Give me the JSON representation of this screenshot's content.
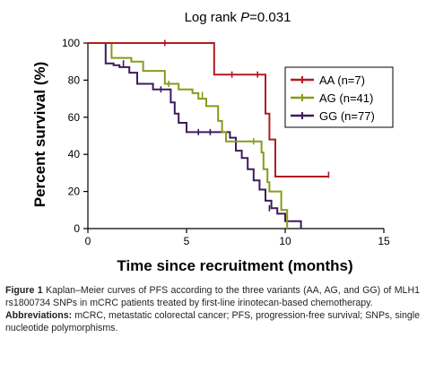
{
  "chart_data": {
    "type": "line",
    "step": true,
    "title": "Log rank P=0.031",
    "title_parts": {
      "prefix": "Log rank ",
      "italic": "P",
      "suffix": "=0.031"
    },
    "xlabel": "Time since recruitment (months)",
    "ylabel": "Percent survival (%)",
    "xlim": [
      0,
      15
    ],
    "ylim": [
      0,
      100
    ],
    "xticks": [
      0,
      5,
      10,
      15
    ],
    "yticks": [
      0,
      20,
      40,
      60,
      80,
      100
    ],
    "grid": false,
    "legend_position": "right",
    "series": [
      {
        "name": "AA (n=7)",
        "color": "#b01c22",
        "steps": [
          [
            0,
            100
          ],
          [
            6.4,
            100
          ],
          [
            6.4,
            83
          ],
          [
            9.0,
            83
          ],
          [
            9.0,
            62
          ],
          [
            9.2,
            62
          ],
          [
            9.2,
            48
          ],
          [
            9.5,
            48
          ],
          [
            9.5,
            28
          ],
          [
            12.2,
            28
          ]
        ],
        "censored": [
          [
            3.9,
            100
          ],
          [
            7.3,
            83
          ],
          [
            8.6,
            83
          ],
          [
            12.2,
            29
          ]
        ]
      },
      {
        "name": "AG (n=41)",
        "color": "#8a9a1a",
        "steps": [
          [
            0,
            100
          ],
          [
            1.2,
            100
          ],
          [
            1.2,
            92
          ],
          [
            2.2,
            92
          ],
          [
            2.2,
            90
          ],
          [
            2.8,
            90
          ],
          [
            2.8,
            85
          ],
          [
            3.9,
            85
          ],
          [
            3.9,
            78
          ],
          [
            4.6,
            78
          ],
          [
            4.6,
            75
          ],
          [
            5.3,
            75
          ],
          [
            5.3,
            73
          ],
          [
            5.6,
            73
          ],
          [
            5.6,
            70
          ],
          [
            6.0,
            70
          ],
          [
            6.0,
            66
          ],
          [
            6.6,
            66
          ],
          [
            6.6,
            58
          ],
          [
            6.8,
            58
          ],
          [
            6.8,
            52
          ],
          [
            7.0,
            52
          ],
          [
            7.0,
            47
          ],
          [
            8.8,
            47
          ],
          [
            8.8,
            41
          ],
          [
            8.9,
            41
          ],
          [
            8.9,
            32
          ],
          [
            9.1,
            32
          ],
          [
            9.1,
            25
          ],
          [
            9.2,
            25
          ],
          [
            9.2,
            20
          ],
          [
            9.8,
            20
          ],
          [
            9.8,
            10
          ],
          [
            10.1,
            10
          ],
          [
            10.1,
            0
          ]
        ],
        "censored": [
          [
            4.1,
            78
          ],
          [
            5.8,
            72
          ],
          [
            8.4,
            47
          ]
        ]
      },
      {
        "name": "GG (n=77)",
        "color": "#3e1a5e",
        "steps": [
          [
            0,
            100
          ],
          [
            0.9,
            100
          ],
          [
            0.9,
            89
          ],
          [
            1.3,
            89
          ],
          [
            1.3,
            88
          ],
          [
            1.6,
            88
          ],
          [
            1.6,
            87
          ],
          [
            2.1,
            87
          ],
          [
            2.1,
            84
          ],
          [
            2.5,
            84
          ],
          [
            2.5,
            78
          ],
          [
            3.3,
            78
          ],
          [
            3.3,
            75
          ],
          [
            4.2,
            75
          ],
          [
            4.2,
            68
          ],
          [
            4.4,
            68
          ],
          [
            4.4,
            62
          ],
          [
            4.6,
            62
          ],
          [
            4.6,
            57
          ],
          [
            5.0,
            57
          ],
          [
            5.0,
            52
          ],
          [
            7.2,
            52
          ],
          [
            7.2,
            49
          ],
          [
            7.5,
            49
          ],
          [
            7.5,
            42
          ],
          [
            7.8,
            42
          ],
          [
            7.8,
            38
          ],
          [
            8.1,
            38
          ],
          [
            8.1,
            32
          ],
          [
            8.4,
            32
          ],
          [
            8.4,
            26
          ],
          [
            8.7,
            26
          ],
          [
            8.7,
            21
          ],
          [
            9.0,
            21
          ],
          [
            9.0,
            15
          ],
          [
            9.3,
            15
          ],
          [
            9.3,
            11
          ],
          [
            9.6,
            11
          ],
          [
            9.6,
            8
          ],
          [
            10.0,
            8
          ],
          [
            10.0,
            4
          ],
          [
            10.8,
            4
          ],
          [
            10.8,
            0
          ]
        ],
        "censored": [
          [
            1.8,
            89
          ],
          [
            3.7,
            75
          ],
          [
            5.6,
            52
          ],
          [
            6.2,
            52
          ],
          [
            9.2,
            11
          ]
        ]
      }
    ]
  },
  "caption": {
    "fig_label": "Figure 1",
    "fig_text": "Kaplan–Meier curves of PFS according to the three variants (AA, AG, and GG) of MLH1 rs1800734 SNPs in mCRC patients treated by first-line irinotecan-based chemotherapy.",
    "abbr_label": "Abbreviations:",
    "abbr_text": "mCRC, metastatic colorectal cancer; PFS, progression-free survival; SNPs, single nucleotide polymorphisms."
  }
}
